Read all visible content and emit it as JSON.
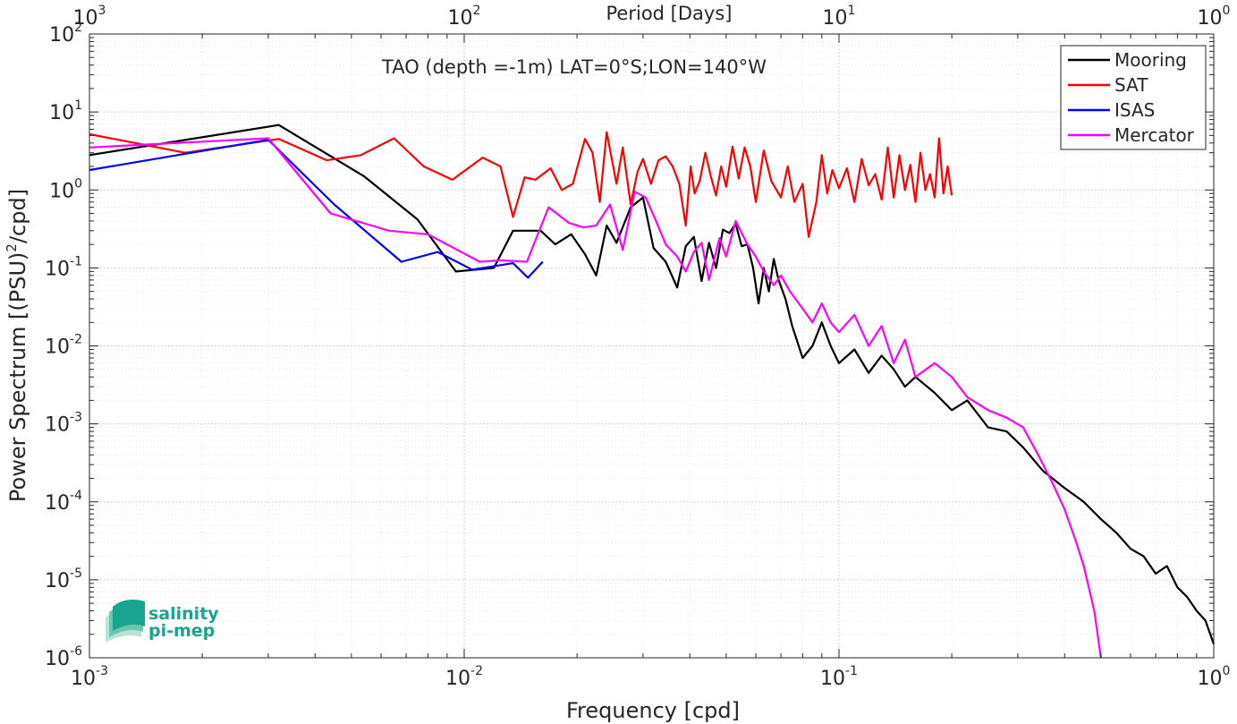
{
  "chart_data": {
    "type": "line",
    "title": "TAO (depth =-1m) LAT=0°S;LON=140°W",
    "xlabel": "Frequency [cpd]",
    "ylabel_main": "Power Spectrum [(PSU)",
    "ylabel_sup": "2",
    "ylabel_tail": "/cpd]",
    "top_axis_label": "Period [Days]",
    "x_scale": "log",
    "y_scale": "log",
    "xlim": [
      0.001,
      1
    ],
    "ylim": [
      1e-06,
      100
    ],
    "grid": true,
    "legend_position": "top-right",
    "x_ticks": [
      {
        "value": 0.001,
        "base": "10",
        "exp": "-3"
      },
      {
        "value": 0.01,
        "base": "10",
        "exp": "-2"
      },
      {
        "value": 0.1,
        "base": "10",
        "exp": "-1"
      },
      {
        "value": 1,
        "base": "10",
        "exp": "0"
      }
    ],
    "top_ticks": [
      {
        "value": 0.001,
        "base": "10",
        "exp": "3"
      },
      {
        "value": 0.01,
        "base": "10",
        "exp": "2"
      },
      {
        "value": 0.1,
        "base": "10",
        "exp": "1"
      },
      {
        "value": 1,
        "base": "10",
        "exp": "0"
      }
    ],
    "y_ticks": [
      {
        "value": 100,
        "base": "10",
        "exp": "2"
      },
      {
        "value": 10,
        "base": "10",
        "exp": "1"
      },
      {
        "value": 1,
        "base": "10",
        "exp": "0"
      },
      {
        "value": 0.1,
        "base": "10",
        "exp": "-1"
      },
      {
        "value": 0.01,
        "base": "10",
        "exp": "-2"
      },
      {
        "value": 0.001,
        "base": "10",
        "exp": "-3"
      },
      {
        "value": 0.0001,
        "base": "10",
        "exp": "-4"
      },
      {
        "value": 1e-05,
        "base": "10",
        "exp": "-5"
      },
      {
        "value": 1e-06,
        "base": "10",
        "exp": "-6"
      }
    ],
    "series": [
      {
        "name": "Mooring",
        "color": "#000000",
        "x": [
          0.001,
          0.0032,
          0.0054,
          0.0075,
          0.0095,
          0.012,
          0.0135,
          0.016,
          0.0175,
          0.0193,
          0.021,
          0.0225,
          0.024,
          0.0255,
          0.0278,
          0.03,
          0.032,
          0.0345,
          0.037,
          0.039,
          0.041,
          0.043,
          0.045,
          0.047,
          0.049,
          0.051,
          0.053,
          0.055,
          0.057,
          0.059,
          0.061,
          0.063,
          0.065,
          0.067,
          0.069,
          0.072,
          0.075,
          0.08,
          0.085,
          0.09,
          0.095,
          0.1,
          0.11,
          0.12,
          0.13,
          0.14,
          0.15,
          0.16,
          0.18,
          0.2,
          0.22,
          0.25,
          0.28,
          0.31,
          0.35,
          0.4,
          0.45,
          0.5,
          0.55,
          0.6,
          0.65,
          0.7,
          0.75,
          0.8,
          0.85,
          0.9,
          0.95,
          1.0
        ],
        "y": [
          2.8,
          6.8,
          1.5,
          0.42,
          0.09,
          0.1,
          0.3,
          0.3,
          0.2,
          0.27,
          0.15,
          0.08,
          0.35,
          0.21,
          0.6,
          0.8,
          0.18,
          0.12,
          0.056,
          0.19,
          0.25,
          0.068,
          0.21,
          0.1,
          0.31,
          0.28,
          0.37,
          0.19,
          0.2,
          0.1,
          0.035,
          0.1,
          0.05,
          0.13,
          0.07,
          0.04,
          0.018,
          0.007,
          0.01,
          0.02,
          0.01,
          0.006,
          0.009,
          0.0045,
          0.0075,
          0.005,
          0.003,
          0.004,
          0.0025,
          0.0015,
          0.002,
          0.0009,
          0.0008,
          0.0005,
          0.00025,
          0.00015,
          0.0001,
          6e-05,
          4e-05,
          2.5e-05,
          2e-05,
          1.2e-05,
          1.5e-05,
          8e-06,
          6e-06,
          4e-06,
          3e-06,
          1.5e-06
        ]
      },
      {
        "name": "SAT",
        "color": "#ff0000",
        "x": [
          0.001,
          0.0018,
          0.0032,
          0.0043,
          0.0053,
          0.0065,
          0.0078,
          0.0093,
          0.0112,
          0.0125,
          0.0135,
          0.0145,
          0.0155,
          0.017,
          0.0182,
          0.0195,
          0.021,
          0.022,
          0.023,
          0.024,
          0.0255,
          0.0265,
          0.0278,
          0.029,
          0.03,
          0.0315,
          0.033,
          0.0345,
          0.036,
          0.0375,
          0.039,
          0.0402,
          0.0412,
          0.0425,
          0.044,
          0.0455,
          0.047,
          0.0485,
          0.05,
          0.052,
          0.054,
          0.056,
          0.058,
          0.06,
          0.063,
          0.066,
          0.07,
          0.073,
          0.076,
          0.08,
          0.083,
          0.087,
          0.09,
          0.093,
          0.096,
          0.1,
          0.105,
          0.11,
          0.115,
          0.12,
          0.125,
          0.13,
          0.135,
          0.14,
          0.145,
          0.15,
          0.155,
          0.16,
          0.165,
          0.17,
          0.175,
          0.18,
          0.185,
          0.19,
          0.195,
          0.2
        ],
        "y": [
          5.2,
          3.0,
          4.5,
          2.4,
          2.8,
          4.6,
          2.0,
          1.35,
          2.6,
          2.0,
          0.45,
          1.45,
          1.35,
          1.9,
          1.0,
          1.2,
          4.5,
          3.0,
          0.7,
          5.5,
          1.2,
          3.5,
          0.65,
          1.7,
          2.5,
          1.2,
          2.4,
          2.7,
          2.0,
          1.2,
          0.35,
          2.0,
          0.9,
          1.3,
          3.0,
          1.5,
          0.85,
          2.0,
          1.1,
          3.6,
          1.4,
          3.5,
          2.0,
          0.7,
          3.2,
          1.3,
          0.8,
          2.0,
          0.7,
          1.2,
          0.25,
          0.7,
          2.8,
          0.9,
          1.8,
          1.05,
          1.9,
          0.7,
          2.5,
          1.15,
          1.6,
          0.75,
          3.5,
          0.8,
          2.8,
          1.0,
          2.1,
          0.7,
          3.0,
          1.0,
          1.6,
          0.8,
          4.6,
          0.9,
          2.0,
          0.85
        ]
      },
      {
        "name": "ISAS",
        "color": "#0000ff",
        "x": [
          0.001,
          0.003,
          0.0045,
          0.0068,
          0.0085,
          0.0105,
          0.0135,
          0.0148,
          0.0162
        ],
        "y": [
          1.8,
          4.4,
          0.65,
          0.12,
          0.16,
          0.095,
          0.115,
          0.075,
          0.12
        ]
      },
      {
        "name": "Mercator",
        "color": "#ff00ff",
        "x": [
          0.001,
          0.003,
          0.0044,
          0.0063,
          0.008,
          0.011,
          0.0125,
          0.0147,
          0.0168,
          0.019,
          0.0208,
          0.0225,
          0.0245,
          0.0265,
          0.0285,
          0.0305,
          0.0325,
          0.0345,
          0.037,
          0.039,
          0.041,
          0.043,
          0.045,
          0.048,
          0.05,
          0.053,
          0.057,
          0.06,
          0.063,
          0.067,
          0.07,
          0.074,
          0.08,
          0.085,
          0.09,
          0.095,
          0.1,
          0.11,
          0.12,
          0.13,
          0.14,
          0.15,
          0.16,
          0.18,
          0.2,
          0.22,
          0.25,
          0.28,
          0.31,
          0.34,
          0.37,
          0.4,
          0.43,
          0.45,
          0.48,
          0.5
        ],
        "y": [
          3.5,
          4.6,
          0.5,
          0.3,
          0.27,
          0.12,
          0.125,
          0.12,
          0.6,
          0.38,
          0.33,
          0.35,
          0.65,
          0.17,
          0.95,
          0.8,
          0.4,
          0.2,
          0.14,
          0.09,
          0.16,
          0.21,
          0.07,
          0.24,
          0.14,
          0.4,
          0.2,
          0.14,
          0.09,
          0.06,
          0.08,
          0.05,
          0.03,
          0.02,
          0.035,
          0.02,
          0.015,
          0.025,
          0.01,
          0.018,
          0.006,
          0.012,
          0.004,
          0.006,
          0.004,
          0.0022,
          0.0015,
          0.0012,
          0.0009,
          0.0004,
          0.00018,
          8e-05,
          3e-05,
          1.5e-05,
          4e-06,
          1e-06
        ]
      }
    ]
  },
  "logo": {
    "line1": "salinity",
    "line2": "pi-mep",
    "color": "#1aa38f"
  }
}
